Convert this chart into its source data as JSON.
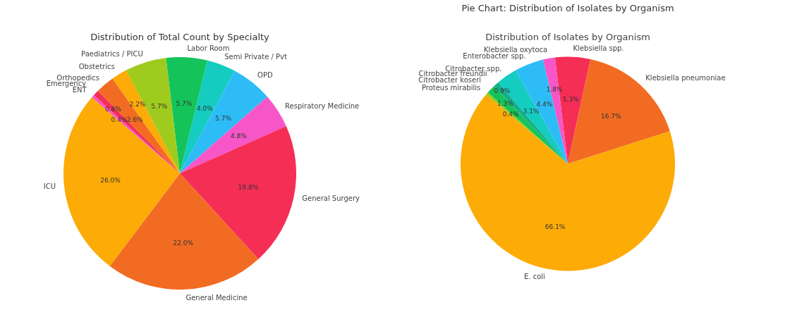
{
  "chart_data": [
    {
      "type": "pie",
      "title": "Distribution of Total Count by Specialty",
      "categories": [
        "Labor Room",
        "Semi Private / Pvt",
        "OPD",
        "Respiratory Medicine",
        "General Surgery",
        "General Medicine",
        "ICU",
        "ENT",
        "Emergency",
        "Orthopedics",
        "Obstetrics",
        "Paediatrics / PICU"
      ],
      "values": [
        5.7,
        4.0,
        5.7,
        4.8,
        19.8,
        22.0,
        26.0,
        0.4,
        0.8,
        2.6,
        2.2,
        5.7
      ],
      "value_labels": [
        "5.7%",
        "4.0%",
        "5.7%",
        "4.8%",
        "19.8%",
        "22.0%",
        "26.0%",
        "0.4%",
        "0.8%",
        "2.6%",
        "2.2%",
        "5.7%"
      ],
      "colors": [
        "#14c45a",
        "#14ccc0",
        "#2ebcf7",
        "#f656c8",
        "#f52e56",
        "#f26b22",
        "#fdab06",
        "#f656c8",
        "#f52e56",
        "#f26b22",
        "#fdab06",
        "#9fcb1e"
      ],
      "legend": false
    },
    {
      "type": "pie",
      "title": "Pie Chart: Distribution of Isolates by Organism",
      "subtitle": "Distribution of Isolates by Organism",
      "categories": [
        "Klebsiella spp.",
        "Klebsiella pneumoniae",
        "E. coli",
        "Proteus mirabilis",
        "Citrobacter koseri",
        "Citrobacter freundii",
        "Citrobacter spp.",
        "Enterobacter spp.",
        "Klebsiella oxytoca"
      ],
      "values": [
        5.3,
        16.7,
        66.1,
        0.4,
        1.3,
        0.9,
        3.1,
        4.4,
        1.8
      ],
      "value_labels": [
        "5.3%",
        "16.7%",
        "66.1%",
        "0.4%",
        "1.3%",
        "0.9%",
        "3.1%",
        "4.4%",
        "1.8%"
      ],
      "colors": [
        "#f52e56",
        "#f26b22",
        "#fdab06",
        "#9fcb1e",
        "#14c45a",
        "#14b08a",
        "#14ccc0",
        "#2ebcf7",
        "#f656c8"
      ],
      "legend": false
    }
  ]
}
